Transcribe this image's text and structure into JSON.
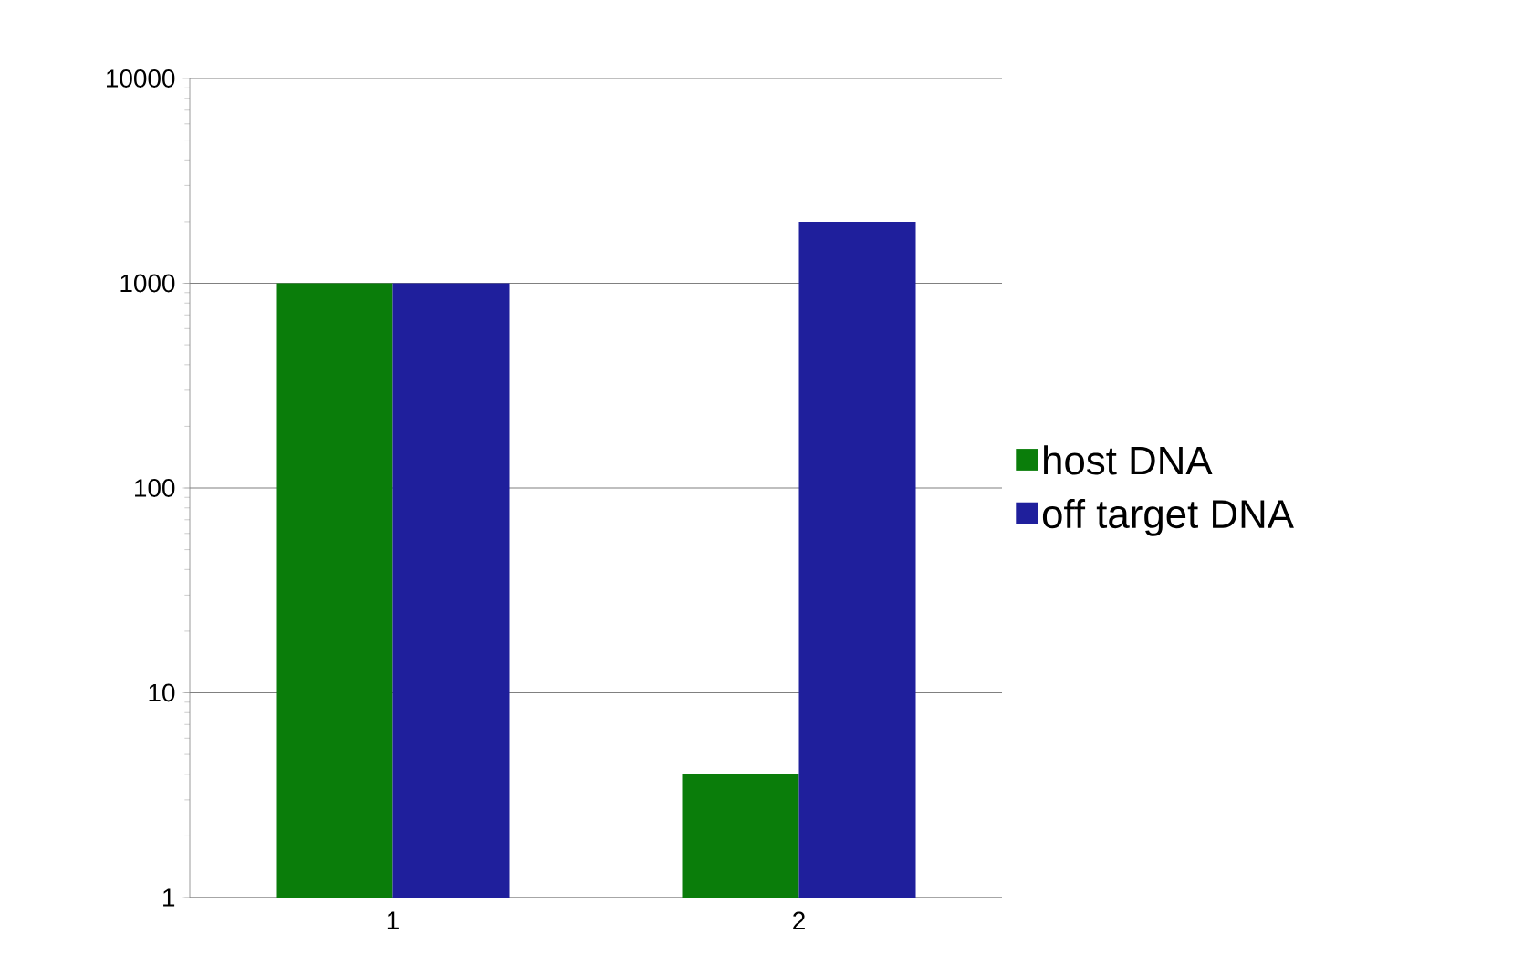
{
  "chart_data": {
    "type": "bar",
    "categories": [
      "1",
      "2"
    ],
    "series": [
      {
        "name": "host DNA",
        "color": "#0a7d0a",
        "values": [
          1000,
          4
        ]
      },
      {
        "name": "off target DNA",
        "color": "#1f1f9c",
        "values": [
          1000,
          2000
        ]
      }
    ],
    "log": "y",
    "ylim": [
      1,
      10000
    ],
    "yticks": [
      1,
      10,
      100,
      1000,
      10000
    ],
    "grid": "y",
    "legend": "right"
  }
}
